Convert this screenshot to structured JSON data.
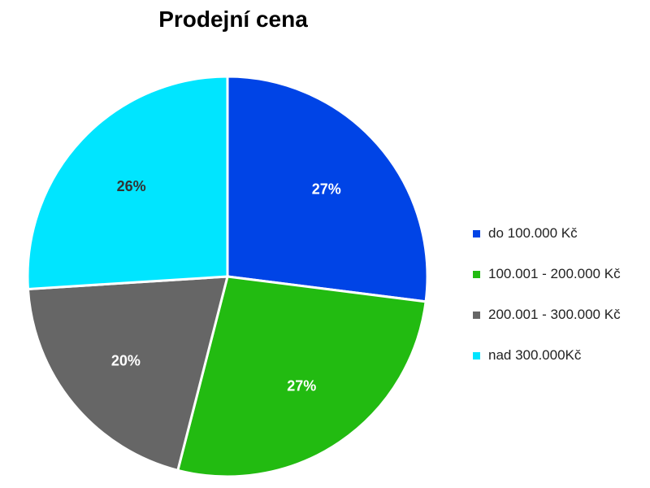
{
  "chart_data": {
    "type": "pie",
    "title": "Prodejní cena",
    "slices": [
      {
        "label": "do 100.000 Kč",
        "value": 27,
        "color": "#0044E6",
        "label_color": "#ffffff"
      },
      {
        "label": "100.001 - 200.000 Kč",
        "value": 27,
        "color": "#22BB11",
        "label_color": "#ffffff"
      },
      {
        "label": "200.001 - 300.000 Kč",
        "value": 20,
        "color": "#666666",
        "label_color": "#ffffff"
      },
      {
        "label": "nad 300.000Kč",
        "value": 26,
        "color": "#00E5FF",
        "label_color": "#333333"
      }
    ],
    "data_labels": [
      "27%",
      "27%",
      "20%",
      "26%"
    ],
    "legend_position": "right"
  }
}
